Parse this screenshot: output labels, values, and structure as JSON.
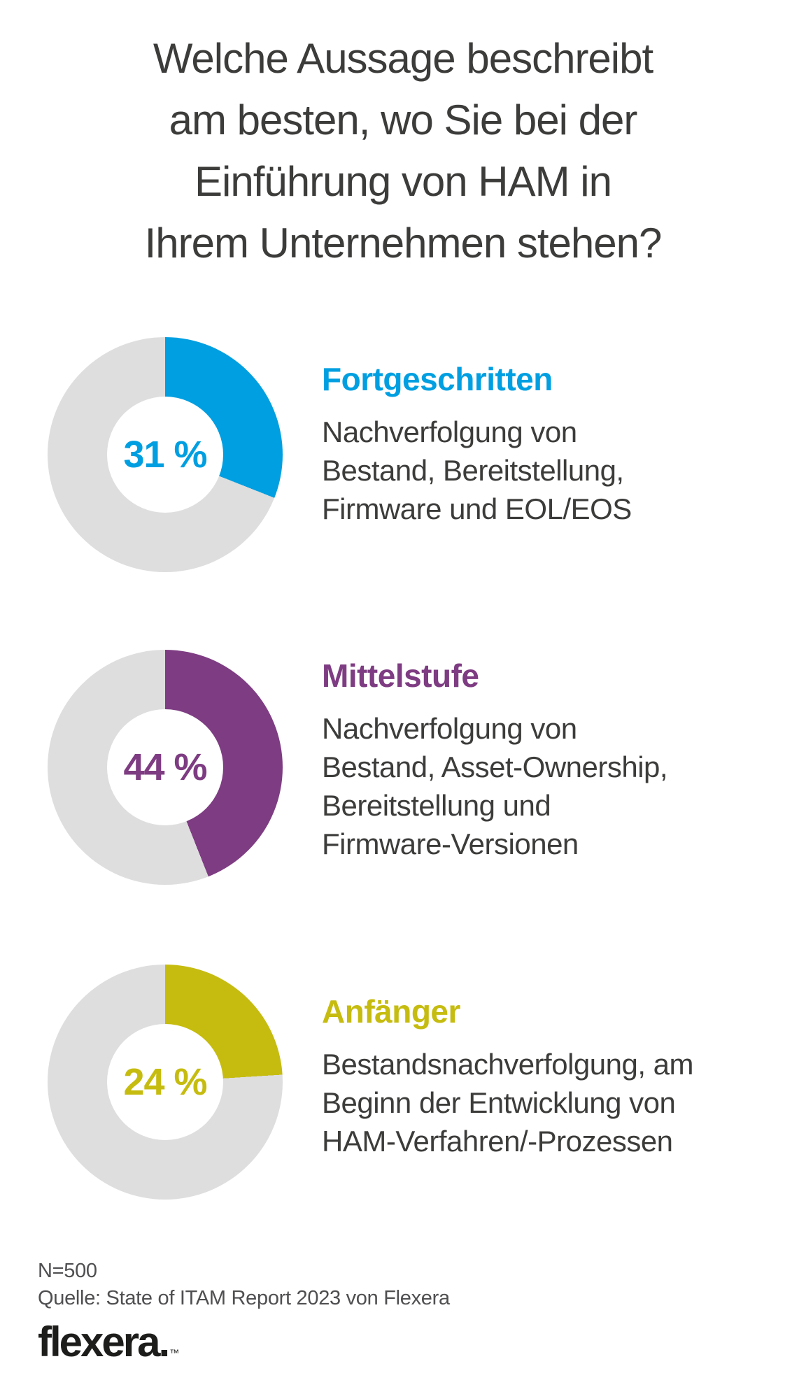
{
  "title_lines": [
    "Welche Aussage beschreibt",
    "am besten, wo Sie bei der",
    "Einführung von HAM in",
    "Ihrem Unternehmen stehen?"
  ],
  "chart_data": {
    "type": "pie",
    "variant": "donut",
    "unit": "%",
    "start_angle_deg": 0,
    "direction": "clockwise",
    "remainder_color": "#DEDEDE",
    "series": [
      {
        "label": "Fortgeschritten",
        "value": 31,
        "value_label": "31 %",
        "color": "#009FE1",
        "description_lines": [
          "Nachverfolgung von",
          "Bestand, Bereitstellung,",
          "Firmware und EOL/EOS"
        ]
      },
      {
        "label": "Mittelstufe",
        "value": 44,
        "value_label": "44 %",
        "color": "#7E3C82",
        "description_lines": [
          "Nachverfolgung von",
          "Bestand, Asset-Ownership,",
          "Bereitstellung und",
          "Firmware-Versionen"
        ]
      },
      {
        "label": "Anfänger",
        "value": 24,
        "value_label": "24 %",
        "color": "#C6BC10",
        "description_lines": [
          "Bestandsnachverfolgung, am",
          "Beginn der Entwicklung von",
          "HAM-Verfahren/-Prozessen"
        ]
      }
    ]
  },
  "footer": {
    "sample": "N=500",
    "source": "Quelle: State of ITAM Report 2023 von Flexera",
    "logo_text": "flexera.",
    "trademark": "™"
  }
}
